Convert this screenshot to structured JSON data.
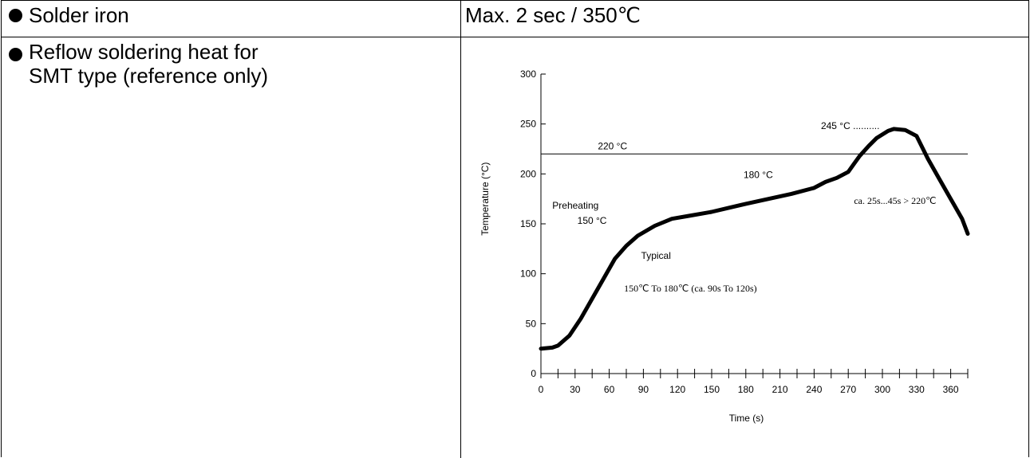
{
  "rows": [
    {
      "label": "Solder iron",
      "value": "Max. 2 sec / 350℃"
    },
    {
      "label_lines": [
        "Reflow soldering heat for",
        "SMT type (reference only)"
      ]
    }
  ],
  "chart_data": {
    "type": "line",
    "xlabel": "Time (s)",
    "ylabel": "Temperature (°C)",
    "xlim": [
      0,
      375
    ],
    "ylim": [
      0,
      300
    ],
    "x_ticks": [
      "0",
      "30",
      "60",
      "90",
      "120",
      "150",
      "180",
      "210",
      "240",
      "270",
      "300",
      "330",
      "360"
    ],
    "y_ticks": [
      "0",
      "50",
      "100",
      "150",
      "200",
      "250",
      "300"
    ],
    "threshold": {
      "y": 220,
      "label": "220 °C"
    },
    "series": [
      {
        "x": [
          0,
          10,
          15,
          25,
          35,
          45,
          55,
          65,
          75,
          85,
          100,
          115,
          130,
          150,
          165,
          180,
          200,
          220,
          240,
          250,
          260,
          270,
          275,
          280,
          288,
          295,
          305,
          310,
          320,
          330,
          340,
          350,
          360,
          370,
          375
        ],
        "y": [
          25,
          26,
          28,
          38,
          55,
          75,
          95,
          115,
          128,
          138,
          148,
          155,
          158,
          162,
          166,
          170,
          175,
          180,
          186,
          192,
          196,
          202,
          210,
          218,
          228,
          236,
          243,
          245,
          244,
          238,
          215,
          195,
          175,
          155,
          140
        ]
      }
    ],
    "annotations": [
      {
        "text": "Preheating",
        "x": 10,
        "y": 165
      },
      {
        "text": "150 °C",
        "x": 32,
        "y": 150
      },
      {
        "text": "Typical",
        "x": 88,
        "y": 115
      },
      {
        "text": "150℃ To 180℃ (ca. 90s To 120s)",
        "x": 73,
        "y": 82
      },
      {
        "text": "180 °C",
        "x": 178,
        "y": 196
      },
      {
        "text": "245 °C ..........",
        "x": 246,
        "y": 245
      },
      {
        "text": "ca. 25s...45s > 220℃",
        "x": 275,
        "y": 170
      }
    ]
  }
}
